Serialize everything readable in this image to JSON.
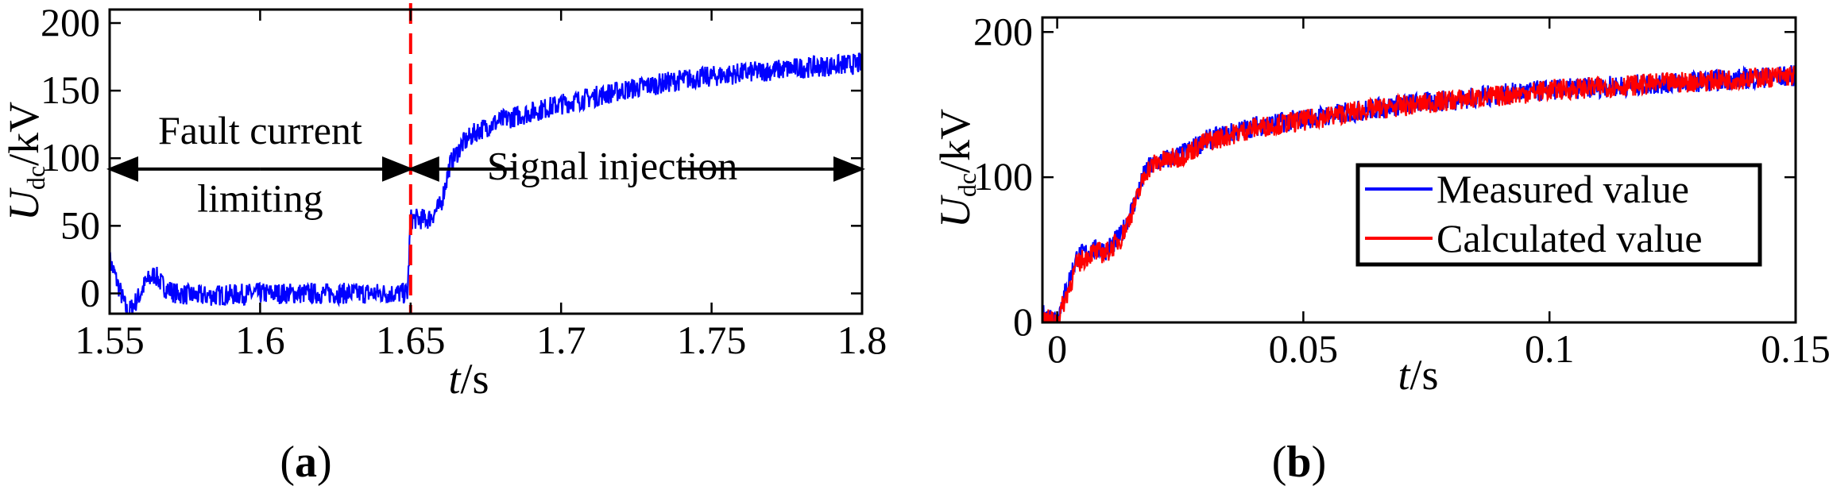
{
  "chart_data": [
    {
      "panel": "a",
      "panel_label": "(a)",
      "type": "line",
      "xlabel_var": "t",
      "xlabel_unit": "/s",
      "ylabel_var": "U",
      "ylabel_sub": "dc",
      "ylabel_unit": "/kV",
      "xlim": [
        1.55,
        1.8
      ],
      "ylim": [
        -15,
        210
      ],
      "xticks": [
        1.55,
        1.6,
        1.65,
        1.7,
        1.75,
        1.8
      ],
      "xtick_labels": [
        "1.55",
        "1.6",
        "1.65",
        "1.7",
        "1.75",
        "1.8"
      ],
      "yticks": [
        0,
        50,
        100,
        150,
        200
      ],
      "ytick_labels": [
        "0",
        "50",
        "100",
        "150",
        "200"
      ],
      "series": [
        {
          "name": "Udc",
          "color": "#0000ff",
          "x": [
            1.55,
            1.553,
            1.556,
            1.559,
            1.562,
            1.565,
            1.568,
            1.572,
            1.58,
            1.6,
            1.62,
            1.64,
            1.649,
            1.65,
            1.652,
            1.656,
            1.66,
            1.663,
            1.667,
            1.672,
            1.68,
            1.7,
            1.72,
            1.74,
            1.76,
            1.78,
            1.8
          ],
          "y": [
            25,
            5,
            -15,
            -5,
            8,
            14,
            5,
            0,
            -2,
            0,
            0,
            0,
            0,
            55,
            55,
            55,
            65,
            95,
            110,
            120,
            128,
            140,
            150,
            158,
            163,
            167,
            170
          ]
        }
      ],
      "marker_x": 1.65,
      "marker_color": "#ff0000",
      "annotations": [
        {
          "text": "Fault current",
          "x": 1.6,
          "y": 120
        },
        {
          "text": "limiting",
          "x": 1.6,
          "y": 70
        },
        {
          "text": "Signal injection",
          "x": 1.717,
          "y": 94
        }
      ],
      "arrow_y": 92,
      "arrows": [
        [
          1.6,
          1.55
        ],
        [
          1.6,
          1.65
        ],
        [
          1.685,
          1.65
        ],
        [
          1.74,
          1.8
        ]
      ]
    },
    {
      "panel": "b",
      "panel_label": "(b)",
      "type": "line",
      "xlabel_var": "t",
      "xlabel_unit": "/s",
      "ylabel_var": "U",
      "ylabel_sub": "dc",
      "ylabel_unit": "/kV",
      "xlim": [
        -0.003,
        0.15
      ],
      "ylim": [
        0,
        210
      ],
      "xticks": [
        0,
        0.05,
        0.1,
        0.15
      ],
      "xtick_labels": [
        "0",
        "0.05",
        "0.1",
        "0.15"
      ],
      "yticks": [
        0,
        100,
        200
      ],
      "ytick_labels": [
        "0",
        "100",
        "200"
      ],
      "legend_position": "center-right",
      "series": [
        {
          "name": "Measured value",
          "color": "#0000ff",
          "x": [
            -0.003,
            0,
            0.002,
            0.004,
            0.007,
            0.01,
            0.013,
            0.016,
            0.018,
            0.02,
            0.025,
            0.03,
            0.04,
            0.05,
            0.06,
            0.07,
            0.08,
            0.09,
            0.1,
            0.11,
            0.12,
            0.13,
            0.14,
            0.15
          ],
          "y": [
            5,
            3,
            25,
            45,
            50,
            50,
            60,
            85,
            105,
            110,
            115,
            125,
            135,
            140,
            145,
            150,
            153,
            157,
            160,
            162,
            164,
            166,
            168,
            170
          ]
        },
        {
          "name": "Calculated value",
          "color": "#ff0000",
          "x": [
            -0.003,
            0,
            0.002,
            0.004,
            0.007,
            0.01,
            0.013,
            0.016,
            0.018,
            0.02,
            0.025,
            0.03,
            0.04,
            0.05,
            0.06,
            0.07,
            0.08,
            0.09,
            0.1,
            0.11,
            0.12,
            0.13,
            0.14,
            0.15
          ],
          "y": [
            2,
            1,
            20,
            40,
            48,
            48,
            58,
            83,
            104,
            110,
            114,
            124,
            134,
            139,
            145,
            149,
            153,
            156,
            160,
            162,
            164,
            166,
            168,
            170
          ]
        }
      ]
    }
  ]
}
